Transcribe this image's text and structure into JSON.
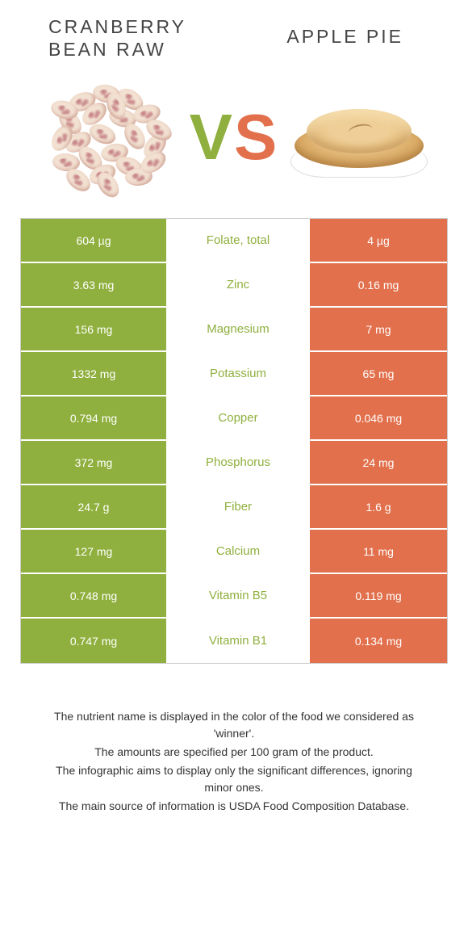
{
  "header": {
    "left_title_line1": "CRANBERRY",
    "left_title_line2": "BEAN RAW",
    "right_title": "APPLE PIE",
    "vs_v": "V",
    "vs_s": "S"
  },
  "colors": {
    "left": "#8fb03e",
    "right": "#e2704c",
    "nutrient_text": "#8fb03e",
    "cell_text": "#ffffff"
  },
  "rows": [
    {
      "left": "604 µg",
      "name": "Folate, total",
      "right": "4 µg"
    },
    {
      "left": "3.63 mg",
      "name": "Zinc",
      "right": "0.16 mg"
    },
    {
      "left": "156 mg",
      "name": "Magnesium",
      "right": "7 mg"
    },
    {
      "left": "1332 mg",
      "name": "Potassium",
      "right": "65 mg"
    },
    {
      "left": "0.794 mg",
      "name": "Copper",
      "right": "0.046 mg"
    },
    {
      "left": "372 mg",
      "name": "Phosphorus",
      "right": "24 mg"
    },
    {
      "left": "24.7 g",
      "name": "Fiber",
      "right": "1.6 g"
    },
    {
      "left": "127 mg",
      "name": "Calcium",
      "right": "11 mg"
    },
    {
      "left": "0.748 mg",
      "name": "Vitamin B5",
      "right": "0.119 mg"
    },
    {
      "left": "0.747 mg",
      "name": "Vitamin B1",
      "right": "0.134 mg"
    }
  ],
  "footer": {
    "l1": "The nutrient name is displayed in the color of the food we considered as 'winner'.",
    "l2": "The amounts are specified per 100 gram of the product.",
    "l3": "The infographic aims to display only the significant differences, ignoring minor ones.",
    "l4": "The main source of information is USDA Food Composition Database."
  }
}
